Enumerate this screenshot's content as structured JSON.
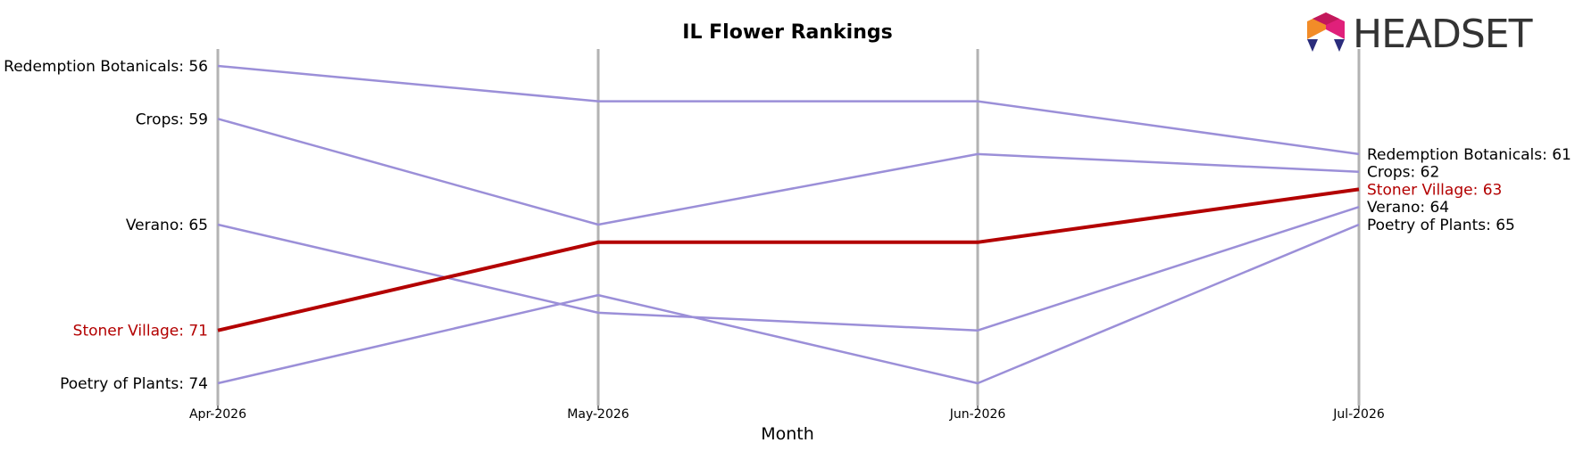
{
  "chart_data": {
    "type": "line",
    "title": "IL Flower Rankings",
    "xlabel": "Month",
    "ylabel": "",
    "categories": [
      "Apr-2026",
      "May-2026",
      "Jun-2026",
      "Jul-2026"
    ],
    "y_inverted": true,
    "ylim": [
      55,
      75
    ],
    "grid": "vertical lines at each month",
    "series": [
      {
        "name": "Redemption Botanicals",
        "values": [
          56,
          58,
          58,
          61
        ],
        "highlight": false
      },
      {
        "name": "Crops",
        "values": [
          59,
          65,
          61,
          62
        ],
        "highlight": false
      },
      {
        "name": "Verano",
        "values": [
          65,
          70,
          71,
          64
        ],
        "highlight": false
      },
      {
        "name": "Stoner Village",
        "values": [
          71,
          66,
          66,
          63
        ],
        "highlight": true
      },
      {
        "name": "Poetry of Plants",
        "values": [
          74,
          69,
          74,
          65
        ],
        "highlight": false
      }
    ],
    "start_labels": [
      "Redemption Botanicals: 56",
      "Crops: 59",
      "Verano: 65",
      "Stoner Village: 71",
      "Poetry of Plants: 74"
    ],
    "end_labels": [
      "Redemption Botanicals: 61",
      "Crops: 62",
      "Stoner Village: 63",
      "Verano: 64",
      "Poetry of Plants: 65"
    ],
    "colors": {
      "default": "#9b8fd8",
      "highlight": "#b30000",
      "gridline": "#b3b3b3"
    }
  },
  "logo": {
    "text": "HEADSET",
    "icon": "headset-logo-icon"
  }
}
